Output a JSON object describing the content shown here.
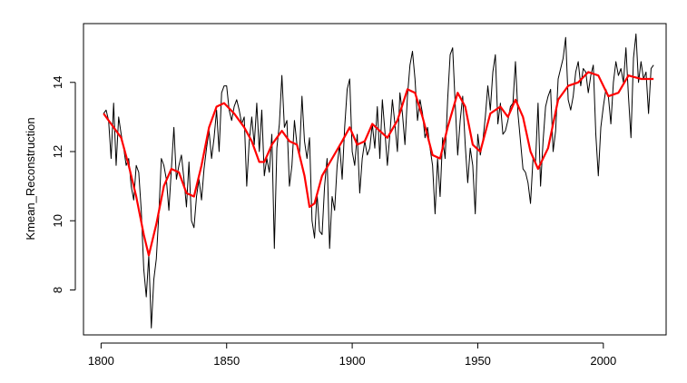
{
  "chart_data": {
    "type": "line",
    "title": "",
    "xlabel": "",
    "ylabel": "Kmean_Reconstruction",
    "xlim": [
      1793,
      2025
    ],
    "ylim": [
      6.7,
      15.7
    ],
    "x_ticks": [
      1800,
      1850,
      1900,
      1950,
      2000
    ],
    "y_ticks": [
      8,
      10,
      12,
      14
    ],
    "grid": false,
    "legend": "none",
    "series": [
      {
        "color": "#000000",
        "x_start": 1801,
        "x_step": 1,
        "values": [
          13.1,
          13.2,
          12.9,
          11.8,
          13.4,
          11.6,
          13.0,
          12.5,
          12.1,
          11.6,
          11.8,
          11.0,
          10.6,
          11.6,
          11.4,
          10.3,
          8.6,
          7.8,
          9.0,
          6.9,
          8.3,
          8.9,
          10.2,
          11.8,
          11.6,
          11.2,
          10.3,
          11.5,
          12.7,
          11.2,
          11.6,
          11.9,
          11.2,
          10.4,
          11.7,
          10.0,
          9.8,
          10.7,
          11.2,
          10.6,
          11.5,
          12.1,
          12.6,
          11.8,
          12.4,
          13.2,
          12.0,
          13.7,
          13.9,
          13.9,
          13.2,
          12.9,
          13.3,
          13.5,
          13.2,
          12.8,
          13.0,
          11.0,
          12.3,
          13.0,
          12.2,
          13.4,
          12.0,
          13.2,
          11.3,
          11.8,
          11.4,
          12.5,
          9.2,
          12.1,
          12.8,
          14.2,
          12.7,
          12.9,
          11.0,
          11.6,
          12.9,
          12.2,
          11.9,
          13.6,
          12.3,
          11.8,
          12.4,
          10.0,
          9.5,
          10.8,
          9.7,
          9.6,
          11.0,
          11.8,
          9.2,
          10.7,
          10.3,
          11.6,
          12.2,
          11.2,
          12.7,
          13.8,
          14.1,
          12.0,
          11.6,
          12.5,
          10.8,
          11.8,
          12.3,
          11.9,
          12.1,
          12.8,
          12.1,
          13.3,
          11.8,
          13.5,
          12.6,
          11.6,
          12.5,
          13.5,
          12.8,
          12.0,
          13.7,
          13.1,
          12.2,
          13.6,
          14.5,
          14.9,
          14.1,
          12.9,
          13.5,
          13.1,
          12.4,
          12.7,
          12.1,
          11.6,
          10.2,
          11.8,
          10.7,
          12.4,
          11.8,
          13.5,
          14.8,
          15.0,
          13.4,
          11.9,
          12.9,
          13.6,
          12.2,
          11.1,
          12.1,
          11.6,
          10.2,
          12.5,
          11.9,
          12.3,
          13.0,
          13.9,
          13.2,
          14.3,
          14.8,
          12.8,
          13.4,
          12.5,
          12.6,
          12.9,
          13.3,
          13.4,
          14.6,
          13.1,
          12.3,
          11.5,
          11.4,
          11.1,
          10.5,
          11.8,
          11.7,
          13.4,
          11.0,
          12.3,
          13.3,
          13.6,
          13.8,
          12.0,
          12.6,
          14.1,
          14.4,
          14.7,
          15.3,
          13.5,
          13.2,
          13.6,
          14.3,
          14.6,
          13.9,
          14.4,
          14.3,
          13.7,
          14.2,
          14.5,
          12.5,
          11.3,
          12.7,
          13.3,
          13.8,
          13.6,
          12.8,
          14.0,
          14.6,
          14.2,
          14.4,
          14.0,
          15.0,
          13.6,
          12.4,
          14.7,
          15.4,
          14.0,
          14.6,
          14.1,
          14.3,
          13.1,
          14.4,
          14.5
        ]
      },
      {
        "color": "#ff0000",
        "x": [
          1801,
          1804,
          1808,
          1811,
          1814,
          1817,
          1819,
          1822,
          1825,
          1828,
          1831,
          1834,
          1837,
          1840,
          1843,
          1846,
          1849,
          1853,
          1857,
          1860,
          1863,
          1865,
          1868,
          1872,
          1875,
          1878,
          1881,
          1883,
          1885,
          1888,
          1892,
          1896,
          1899,
          1902,
          1905,
          1908,
          1911,
          1914,
          1918,
          1922,
          1925,
          1928,
          1932,
          1935,
          1938,
          1942,
          1945,
          1948,
          1951,
          1955,
          1959,
          1962,
          1965,
          1968,
          1971,
          1974,
          1978,
          1982,
          1986,
          1990,
          1994,
          1998,
          2002,
          2006,
          2010,
          2015,
          2020
        ],
        "values": [
          13.1,
          12.8,
          12.4,
          11.6,
          10.7,
          9.6,
          9.0,
          9.9,
          11.0,
          11.5,
          11.4,
          10.8,
          10.7,
          11.6,
          12.7,
          13.3,
          13.4,
          13.1,
          12.7,
          12.3,
          11.7,
          11.7,
          12.2,
          12.6,
          12.3,
          12.2,
          11.3,
          10.4,
          10.5,
          11.3,
          11.8,
          12.3,
          12.7,
          12.2,
          12.3,
          12.8,
          12.6,
          12.4,
          12.9,
          13.8,
          13.7,
          13.0,
          11.9,
          11.8,
          12.7,
          13.7,
          13.3,
          12.2,
          12.0,
          13.1,
          13.3,
          13.0,
          13.5,
          13.0,
          12.0,
          11.5,
          12.1,
          13.5,
          13.9,
          14.0,
          14.3,
          14.2,
          13.6,
          13.7,
          14.2,
          14.1,
          14.1
        ]
      }
    ]
  }
}
